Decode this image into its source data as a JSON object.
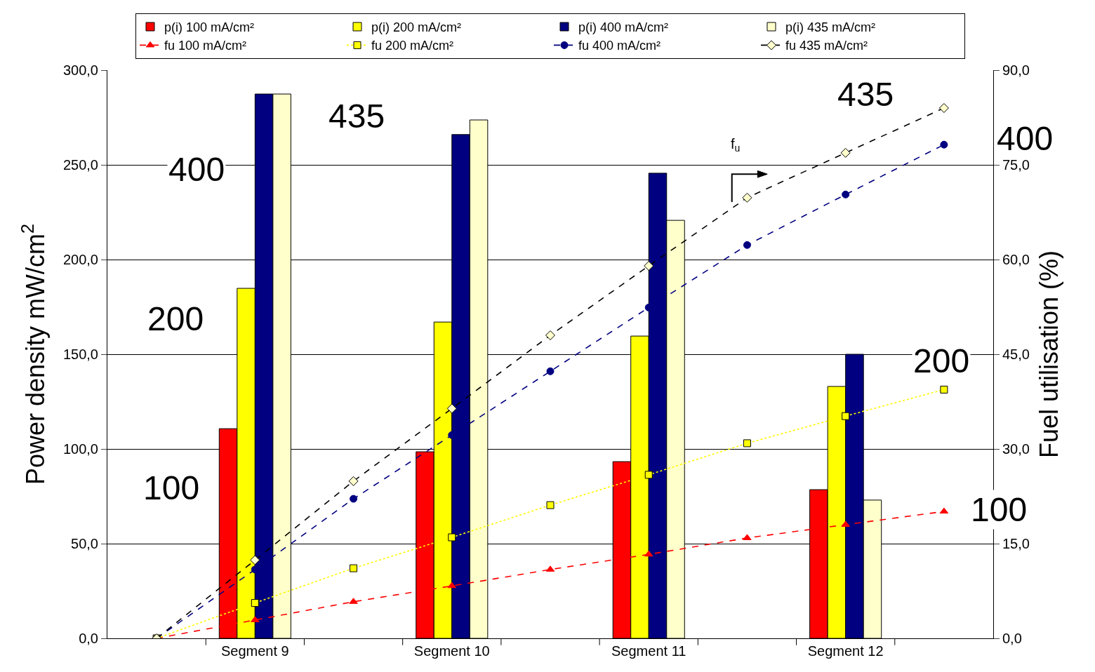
{
  "chart_data": {
    "type": "bar",
    "categories": [
      null,
      "Segment 9",
      null,
      "Segment 10",
      null,
      "Segment 11",
      null,
      "Segment 12",
      null
    ],
    "ylabel": "Power density mW/cm$^{2}$",
    "y2label": "Fuel utilisation (%)",
    "ylim": [
      0,
      300
    ],
    "yticks": [
      {
        "value": 0,
        "label": "0,0"
      },
      {
        "value": 50,
        "label": "50,0"
      },
      {
        "value": 100,
        "label": "100,0"
      },
      {
        "value": 150,
        "label": "150,0"
      },
      {
        "value": 200,
        "label": "200,0"
      },
      {
        "value": 250,
        "label": "250,0"
      },
      {
        "value": 300,
        "label": "300,0"
      }
    ],
    "y2lim": [
      0,
      90
    ],
    "y2ticks": [
      {
        "value": 0,
        "label": "0,0"
      },
      {
        "value": 15,
        "label": "15,0"
      },
      {
        "value": 30,
        "label": "30,0"
      },
      {
        "value": 45,
        "label": "45,0"
      },
      {
        "value": 60,
        "label": "60,0"
      },
      {
        "value": 75,
        "label": "75,0"
      },
      {
        "value": 90,
        "label": "90,0"
      }
    ],
    "grid": "y",
    "legend": "top",
    "series": [
      {
        "name": "p(i) 100 mA/cm²",
        "color": "#ff0000",
        "values": [
          null,
          110.7,
          null,
          98.5,
          null,
          93.3,
          null,
          78.5,
          null
        ]
      },
      {
        "name": "p(i) 200 mA/cm²",
        "color": "#ffff00",
        "values": [
          null,
          184.8,
          null,
          167,
          null,
          159.6,
          null,
          133,
          null
        ]
      },
      {
        "name": "p(i) 400 mA/cm²",
        "color": "#000080",
        "values": [
          null,
          287.4,
          null,
          266,
          null,
          245.6,
          null,
          150,
          null
        ]
      },
      {
        "name": "p(i) 435 mA/cm²",
        "color": "#ffffcc",
        "values": [
          null,
          287.4,
          null,
          273.7,
          null,
          220.7,
          null,
          73,
          null
        ]
      },
      {
        "name": "fu 100 mA/cm²",
        "type": "line",
        "axis": "y2",
        "color": "#ff0000",
        "marker": "triangle",
        "line_style": "dashed",
        "values": [
          0,
          2.9,
          5.8,
          8.3,
          10.9,
          13.3,
          15.9,
          18,
          20.1
        ]
      },
      {
        "name": "fu 200 mA/cm²",
        "type": "line",
        "axis": "y2",
        "color": "#ffff00",
        "marker": "square",
        "line_style": "dotted",
        "values": [
          0,
          5.6,
          11.1,
          16,
          21.1,
          25.9,
          30.9,
          35.2,
          39.4
        ]
      },
      {
        "name": "fu 400 mA/cm²",
        "type": "line",
        "axis": "y2",
        "color": "#000080",
        "marker": "circle",
        "line_style": "dashed",
        "values": [
          0,
          10.9,
          22.1,
          32.2,
          42.3,
          52.4,
          62.3,
          70.3,
          78.2
        ]
      },
      {
        "name": "fu 435 mA/cm²",
        "type": "line",
        "axis": "y2",
        "color": "#000000",
        "marker": "diamond",
        "line_style": "dashed",
        "values": [
          0,
          12.4,
          24.9,
          36.4,
          48,
          59,
          69.8,
          76.9,
          84
        ]
      }
    ],
    "annotations": [
      "400",
      "200",
      "100",
      "435",
      "435",
      "200",
      "f$_{u}$",
      "400",
      "100"
    ]
  }
}
